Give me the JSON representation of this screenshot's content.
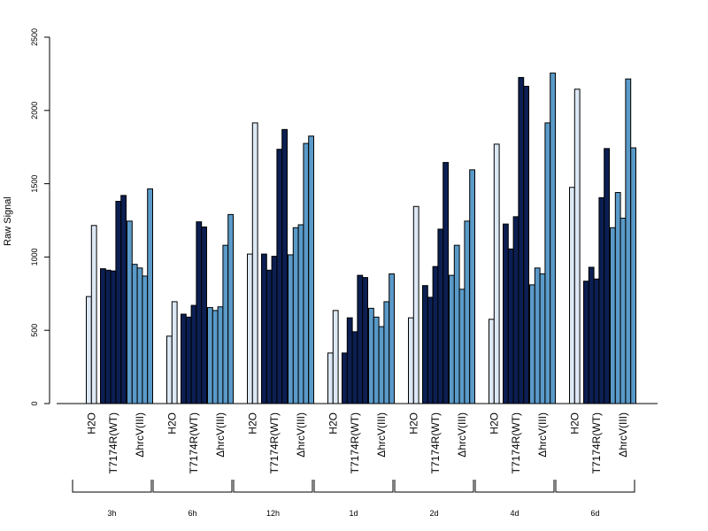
{
  "chart_data": {
    "type": "bar",
    "ylabel": "Raw Signal",
    "ylim": [
      0,
      2500
    ],
    "yticks": [
      0,
      500,
      1000,
      1500,
      2000,
      2500
    ],
    "conditions": [
      {
        "label": "H2O",
        "color": "#dde8f5"
      },
      {
        "label": "T7174R(WT)",
        "color": "#0c1f52"
      },
      {
        "label": "ΔhrcV(III)",
        "color": "#5a9ac8"
      }
    ],
    "time_points": [
      {
        "label": "3h",
        "groups": [
          [
            730,
            1215
          ],
          [
            920,
            910,
            905,
            1380,
            1420
          ],
          [
            1245,
            950,
            925,
            870,
            1465
          ]
        ]
      },
      {
        "label": "6h",
        "groups": [
          [
            460,
            695
          ],
          [
            610,
            590,
            670,
            1240,
            1205
          ],
          [
            655,
            635,
            660,
            1080,
            1290
          ]
        ]
      },
      {
        "label": "12h",
        "groups": [
          [
            1020,
            1915
          ],
          [
            1020,
            910,
            1005,
            1735,
            1870
          ],
          [
            1015,
            1200,
            1220,
            1775,
            1825
          ]
        ]
      },
      {
        "label": "1d",
        "groups": [
          [
            345,
            635
          ],
          [
            345,
            585,
            490,
            875,
            860
          ],
          [
            650,
            590,
            525,
            695,
            885
          ]
        ]
      },
      {
        "label": "2d",
        "groups": [
          [
            585,
            1345
          ],
          [
            805,
            725,
            935,
            1190,
            1645
          ],
          [
            875,
            1080,
            780,
            1245,
            1595
          ]
        ]
      },
      {
        "label": "4d",
        "groups": [
          [
            575,
            1770
          ],
          [
            1225,
            1055,
            1275,
            2225,
            2165
          ],
          [
            810,
            925,
            885,
            1915,
            2255
          ]
        ]
      },
      {
        "label": "6d",
        "groups": [
          [
            1475,
            2145
          ],
          [
            835,
            930,
            850,
            1405,
            1740
          ],
          [
            1200,
            1440,
            1265,
            2215,
            1745
          ]
        ]
      }
    ]
  }
}
